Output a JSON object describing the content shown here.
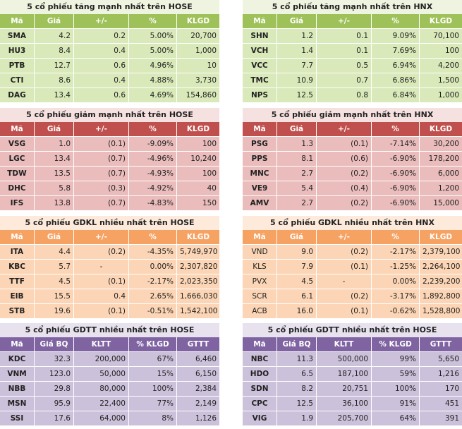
{
  "panels": [
    {
      "title": "5 cổ phiếu tăng mạnh nhất trên HOSE",
      "theme": {
        "title_bg": "#eef4df",
        "hdr_bg": "#9fc159",
        "row_bg": "#d9e9b9"
      },
      "headers": [
        "Mã",
        "Giá",
        "+/-",
        "%",
        "KLGD"
      ],
      "rows": [
        [
          "SMA",
          "4.2",
          "0.2",
          "5.00%",
          "20,700"
        ],
        [
          "HU3",
          "8.4",
          "0.4",
          "5.00%",
          "1,000"
        ],
        [
          "PTB",
          "12.7",
          "0.6",
          "4.96%",
          "10"
        ],
        [
          "CTI",
          "8.6",
          "0.4",
          "4.88%",
          "3,730"
        ],
        [
          "DAG",
          "13.4",
          "0.6",
          "4.69%",
          "154,860"
        ]
      ]
    },
    {
      "title": "5 cổ phiếu tăng mạnh nhất trên HNX",
      "theme": {
        "title_bg": "#eef4df",
        "hdr_bg": "#9fc159",
        "row_bg": "#d9e9b9"
      },
      "headers": [
        "Mã",
        "Giá",
        "+/-",
        "%",
        "KLGD"
      ],
      "rows": [
        [
          "SHN",
          "1.2",
          "0.1",
          "9.09%",
          "70,100"
        ],
        [
          "VCH",
          "1.4",
          "0.1",
          "7.69%",
          "100"
        ],
        [
          "VCC",
          "7.7",
          "0.5",
          "6.94%",
          "4,200"
        ],
        [
          "TMC",
          "10.9",
          "0.7",
          "6.86%",
          "1,500"
        ],
        [
          "NPS",
          "12.5",
          "0.8",
          "6.84%",
          "1,000"
        ]
      ]
    },
    {
      "title": "5 cổ phiếu giảm mạnh nhất trên HOSE",
      "theme": {
        "title_bg": "#f6e1e1",
        "hdr_bg": "#c0504d",
        "row_bg": "#eabcbc"
      },
      "headers": [
        "Mã",
        "Giá",
        "+/-",
        "%",
        "KLGD"
      ],
      "rows": [
        [
          "VSG",
          "1.0",
          "(0.1)",
          "-9.09%",
          "100"
        ],
        [
          "LGC",
          "13.4",
          "(0.7)",
          "-4.96%",
          "10,240"
        ],
        [
          "TDW",
          "13.5",
          "(0.7)",
          "-4.93%",
          "100"
        ],
        [
          "DHC",
          "5.8",
          "(0.3)",
          "-4.92%",
          "40"
        ],
        [
          "IFS",
          "13.8",
          "(0.7)",
          "-4.83%",
          "150"
        ]
      ]
    },
    {
      "title": "5 cổ phiếu giảm mạnh nhất trên HNX",
      "theme": {
        "title_bg": "#f6e1e1",
        "hdr_bg": "#c0504d",
        "row_bg": "#eabcbc"
      },
      "headers": [
        "Mã",
        "Giá",
        "+/-",
        "%",
        "KLGD"
      ],
      "rows": [
        [
          "PSG",
          "1.3",
          "(0.1)",
          "-7.14%",
          "30,200"
        ],
        [
          "PPS",
          "8.1",
          "(0.6)",
          "-6.90%",
          "178,200"
        ],
        [
          "MNC",
          "2.7",
          "(0.2)",
          "-6.90%",
          "6,000"
        ],
        [
          "VE9",
          "5.4",
          "(0.4)",
          "-6.90%",
          "1,200"
        ],
        [
          "AMV",
          "2.7",
          "(0.2)",
          "-6.90%",
          "15,000"
        ]
      ]
    },
    {
      "title": "5 cổ phiếu GDKL nhiều nhất trên HOSE",
      "theme": {
        "title_bg": "#fdeadb",
        "hdr_bg": "#f5a263",
        "row_bg": "#fbd5b5"
      },
      "headers": [
        "Mã",
        "Giá",
        "+/-",
        "%",
        "KLGD"
      ],
      "rows": [
        [
          "ITA",
          "4.4",
          "(0.2)",
          "-4.35%",
          "5,749,970"
        ],
        [
          "KBC",
          "5.7",
          "-",
          "0.00%",
          "2,307,820"
        ],
        [
          "TTF",
          "4.5",
          "(0.1)",
          "-2.17%",
          "2,023,350"
        ],
        [
          "EIB",
          "15.5",
          "0.4",
          "2.65%",
          "1,666,030"
        ],
        [
          "STB",
          "19.6",
          "(0.1)",
          "-0.51%",
          "1,542,100"
        ]
      ]
    },
    {
      "title": "5 cổ phiếu GDKL nhiều nhất trên HNX",
      "theme": {
        "title_bg": "#fdeadb",
        "hdr_bg": "#f5a263",
        "row_bg": "#fbd5b5"
      },
      "headers": [
        "Mã",
        "Giá",
        "+/-",
        "%",
        "KLGD"
      ],
      "plain_codes": true,
      "rows": [
        [
          "VND",
          "9.0",
          "(0.2)",
          "-2.17%",
          "2,379,100"
        ],
        [
          "KLS",
          "7.9",
          "(0.1)",
          "-1.25%",
          "2,264,100"
        ],
        [
          "PVX",
          "4.5",
          "-",
          "0.00%",
          "2,239,200"
        ],
        [
          "SCR",
          "6.1",
          "(0.2)",
          "-3.17%",
          "1,892,800"
        ],
        [
          "ACB",
          "16.0",
          "(0.1)",
          "-0.62%",
          "1,528,800"
        ]
      ]
    },
    {
      "title": "5 cổ phiếu GDTT nhiều nhất trên HOSE",
      "theme": {
        "title_bg": "#e7e2ee",
        "hdr_bg": "#8064a2",
        "row_bg": "#ccc1da"
      },
      "headers": [
        "Mã",
        "Giá BQ",
        "KLTT",
        "% KLGD",
        "GTTT"
      ],
      "rows": [
        [
          "KDC",
          "32.3",
          "200,000",
          "67%",
          "6,460"
        ],
        [
          "VNM",
          "123.0",
          "50,000",
          "15%",
          "6,150"
        ],
        [
          "NBB",
          "29.8",
          "80,000",
          "100%",
          "2,384"
        ],
        [
          "MSN",
          "95.9",
          "22,400",
          "77%",
          "2,149"
        ],
        [
          "SSI",
          "17.6",
          "64,000",
          "8%",
          "1,126"
        ]
      ]
    },
    {
      "title": "5 cổ phiếu GDTT nhiều nhất trên HOSE",
      "theme": {
        "title_bg": "#e7e2ee",
        "hdr_bg": "#8064a2",
        "row_bg": "#ccc1da"
      },
      "headers": [
        "Mã",
        "Giá BQ",
        "KLTT",
        "% KLGD",
        "GTTT"
      ],
      "rows": [
        [
          "NBC",
          "11.3",
          "500,000",
          "99%",
          "5,650"
        ],
        [
          "HDO",
          "6.5",
          "187,100",
          "59%",
          "1,216"
        ],
        [
          "SDN",
          "8.2",
          "20,751",
          "100%",
          "170"
        ],
        [
          "CPC",
          "12.5",
          "36,100",
          "91%",
          "451"
        ],
        [
          "VIG",
          "1.9",
          "205,700",
          "64%",
          "391"
        ]
      ]
    }
  ]
}
